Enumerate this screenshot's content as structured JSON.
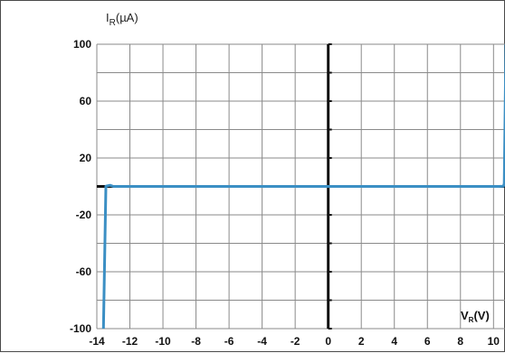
{
  "chart_data": {
    "type": "line",
    "title": "",
    "ylabel": {
      "main": "I",
      "sub": "R",
      "unit": "(µA)"
    },
    "xlabel": {
      "main": "V",
      "sub": "R",
      "unit": "(V)"
    },
    "xlim": [
      -14,
      10.75
    ],
    "ylim": [
      -100,
      100
    ],
    "x_ticks": [
      -14,
      -12,
      -10,
      -8,
      -6,
      -4,
      -2,
      0,
      2,
      4,
      6,
      8,
      10
    ],
    "x_tick_labels": [
      "-14",
      "-12",
      "-10",
      "-8",
      "-6",
      "-4",
      "-2",
      "0",
      "2",
      "4",
      "6",
      "8",
      "10"
    ],
    "y_tick_values": [
      100,
      60,
      20,
      -20,
      -60,
      -100
    ],
    "y_tick_labels": [
      "100",
      "60",
      "20",
      "-20",
      "-60",
      "-100"
    ],
    "grid": true,
    "grid_x_step": 2,
    "grid_y_step": 20,
    "series": [
      {
        "color": "#3b8fc4",
        "x": [
          -13.6,
          -13.45,
          -13.2,
          -13.0,
          0,
          10.3,
          10.6,
          10.65,
          10.75
        ],
        "y": [
          -100,
          0.2,
          0.8,
          0,
          0,
          0,
          0.2,
          2,
          100
        ]
      }
    ]
  }
}
